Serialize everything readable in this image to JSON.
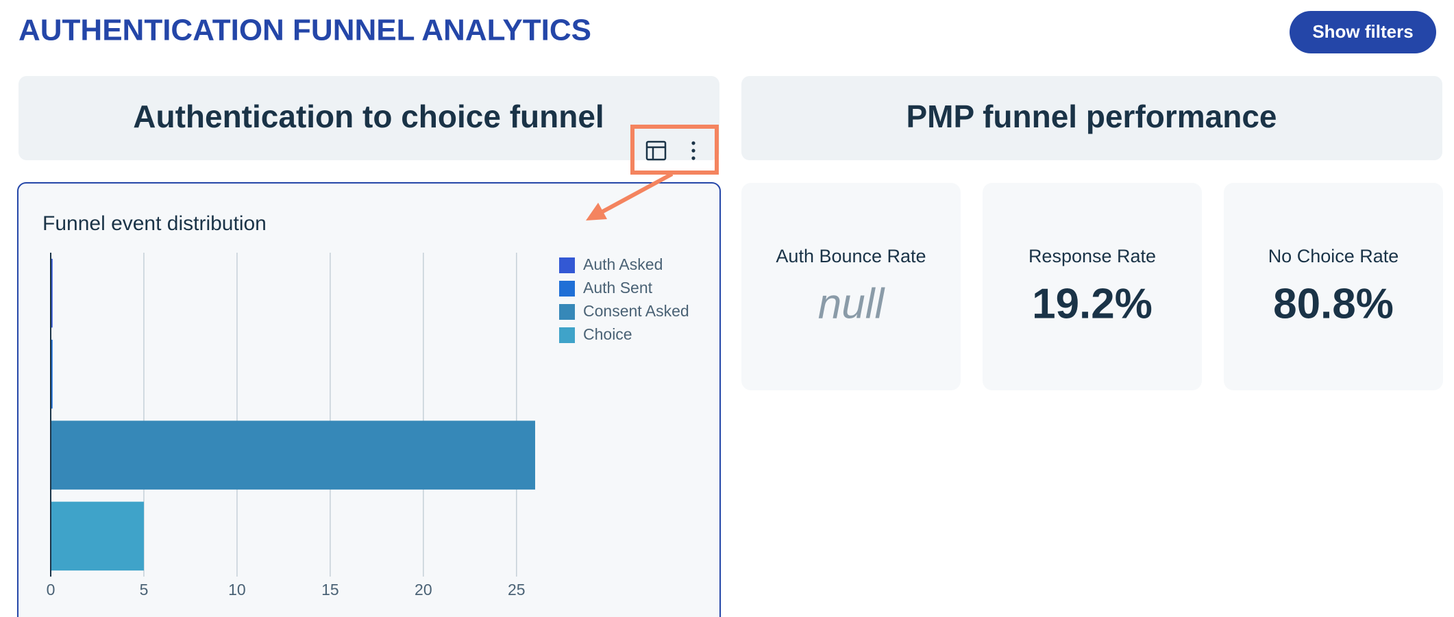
{
  "header": {
    "title": "AUTHENTICATION FUNNEL ANALYTICS",
    "button": "Show filters"
  },
  "panels": [
    {
      "title": "Authentication to choice funnel"
    },
    {
      "title": "PMP funnel performance"
    }
  ],
  "chart_data": {
    "type": "bar",
    "orientation": "horizontal",
    "title": "Funnel event distribution",
    "series": [
      {
        "name": "Auth Asked",
        "color": "#3358d4",
        "values": [
          0.1
        ]
      },
      {
        "name": "Auth Sent",
        "color": "#1f6fd6",
        "values": [
          0.1
        ]
      },
      {
        "name": "Consent Asked",
        "color": "#3688b8",
        "values": [
          26
        ]
      },
      {
        "name": "Choice",
        "color": "#3fa3c9",
        "values": [
          5
        ]
      }
    ],
    "xlim": [
      0,
      26
    ],
    "xticks": [
      0,
      5,
      10,
      15,
      20,
      25
    ],
    "grid": true,
    "legend": "top-right"
  },
  "kpis": [
    {
      "label": "Auth Bounce Rate",
      "value": "null"
    },
    {
      "label": "Response Rate",
      "value": "19.2%"
    },
    {
      "label": "No Choice Rate",
      "value": "80.8%"
    }
  ]
}
